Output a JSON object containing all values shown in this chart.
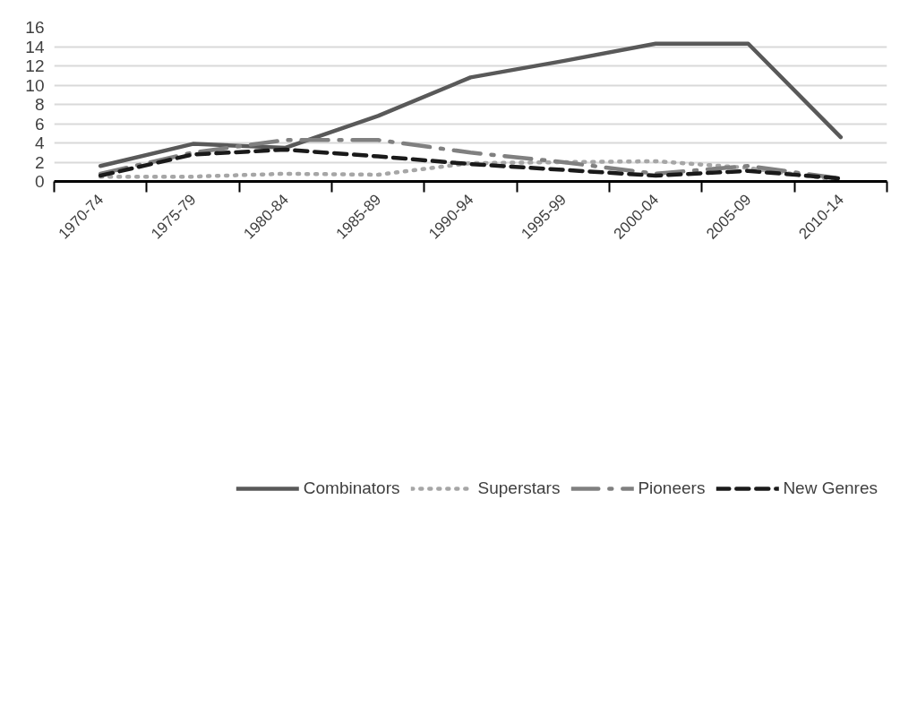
{
  "chart_data": {
    "type": "line",
    "categories": [
      "1970-74",
      "1975-79",
      "1980-84",
      "1985-89",
      "1990-94",
      "1995-99",
      "2000-04",
      "2005-09",
      "2010-14"
    ],
    "series": [
      {
        "name": "Combinators",
        "color": "#595959",
        "line_style": "solid",
        "values": [
          1.6,
          3.9,
          3.5,
          6.8,
          10.8,
          12.5,
          14.3,
          14.3,
          4.6
        ]
      },
      {
        "name": "Superstars",
        "color": "#a6a6a6",
        "line_style": "dotted",
        "values": [
          0.5,
          0.5,
          0.8,
          0.7,
          1.9,
          2.0,
          2.1,
          1.4,
          0.1
        ]
      },
      {
        "name": "Pioneers",
        "color": "#808080",
        "line_style": "dashdot",
        "values": [
          0.8,
          3.0,
          4.3,
          4.3,
          3.0,
          2.0,
          0.8,
          1.6,
          0.3
        ]
      },
      {
        "name": "New Genres",
        "color": "#1a1a1a",
        "line_style": "dashed",
        "values": [
          0.6,
          2.8,
          3.3,
          2.6,
          1.8,
          1.2,
          0.6,
          1.1,
          0.3
        ]
      }
    ],
    "ylim": [
      0,
      16
    ],
    "yticks": [
      0,
      2,
      4,
      6,
      8,
      10,
      12,
      14,
      16
    ],
    "grid": "y",
    "legend": "bottom",
    "marker": "none"
  }
}
